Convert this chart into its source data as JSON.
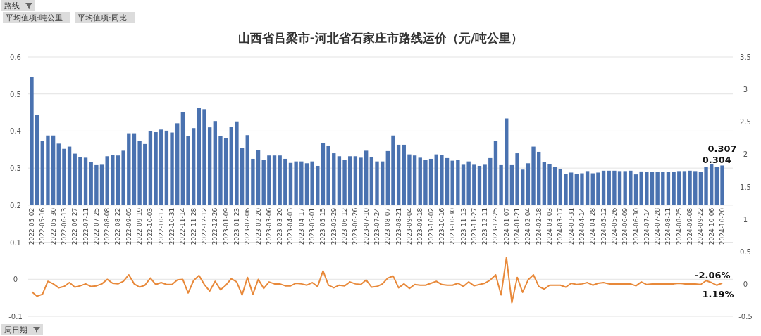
{
  "chart_data": {
    "type": "bar",
    "title": "山西省吕梁市-河北省石家庄市路线运价（元/吨公里）",
    "annotations": [
      "路线",
      "平均值项:吨公里",
      "平均值项:同比",
      "周日期"
    ],
    "categories": [
      "2022-05-02",
      null,
      "2022-05-16",
      null,
      "2022-05-30",
      null,
      "2022-06-13",
      null,
      "2022-06-27",
      null,
      "2022-07-11",
      null,
      "2022-07-25",
      null,
      "2022-08-08",
      null,
      "2022-08-22",
      null,
      "2022-09-05",
      null,
      "2022-09-19",
      null,
      "2022-10-03",
      null,
      "2022-10-17",
      null,
      "2022-10-31",
      null,
      "2022-11-14",
      null,
      "2022-11-28",
      null,
      "2022-12-12",
      null,
      "2022-12-26",
      null,
      "2023-01-09",
      null,
      "2023-01-23",
      null,
      "2023-02-06",
      null,
      "2023-02-20",
      null,
      "2023-03-06",
      null,
      "2023-03-20",
      null,
      "2023-04-03",
      null,
      "2023-04-17",
      null,
      "2023-05-01",
      null,
      "2023-05-15",
      null,
      "2023-05-29",
      null,
      "2023-06-12",
      null,
      "2023-06-26",
      null,
      "2023-07-10",
      null,
      "2023-07-24",
      null,
      "2023-08-07",
      null,
      "2023-08-21",
      null,
      "2023-09-04",
      null,
      "2023-09-18",
      null,
      "2023-10-02",
      null,
      "2023-10-16",
      null,
      "2023-10-30",
      null,
      "2023-11-13",
      null,
      "2023-11-27",
      null,
      "2023-12-11",
      null,
      "2023-12-25",
      null,
      "2024-01-07",
      null,
      "2024-01-21",
      null,
      "2024-02-04",
      null,
      "2024-02-18",
      null,
      "2024-03-03",
      null,
      "2024-03-17",
      null,
      "2024-03-31",
      null,
      "2024-04-14",
      null,
      "2024-04-28",
      null,
      "2024-05-12",
      null,
      "2024-05-26",
      null,
      "2024-06-09",
      null,
      "2024-06-30",
      null,
      "2024-07-14",
      null,
      "2024-07-28",
      null,
      "2024-08-11",
      null,
      "2024-08-25",
      null,
      "2024-09-08",
      null,
      "2024-09-22",
      null,
      "2024-10-06",
      null,
      "2024-10-20"
    ],
    "series": [
      {
        "color": "#4a72b0",
        "base": [
          0.2,
          0.2,
          0.2,
          0.2,
          0.2,
          0.2,
          0.2,
          0.2,
          0.2,
          0.2,
          0.2,
          0.2,
          0.2,
          0.2,
          0.2,
          0.2,
          0.2,
          0.2,
          0.2,
          0.2,
          0.2,
          0.2,
          0.2,
          0.2,
          0.2,
          0.2,
          0.2,
          0.2,
          0.2,
          0.2,
          0.2,
          0.2,
          0.2,
          0.2,
          0.2,
          0.2,
          0.2,
          0.2,
          0.2,
          0.2,
          0.2,
          0.2,
          0.2,
          0.2,
          0.2,
          0.2,
          0.2,
          0.2,
          0.2,
          0.2,
          0.2,
          0.2,
          0.2,
          0.2,
          0.2,
          0.2,
          0.2,
          0.2,
          0.2,
          0.2,
          0.2,
          0.2,
          0.2,
          0.2,
          0.2,
          0.2,
          0.2,
          0.2,
          0.2,
          0.2,
          0.2,
          0.2,
          0.2,
          0.2,
          0.2,
          0.2,
          0.2,
          0.2,
          0.2,
          0.2,
          0.2,
          0.2,
          0.2,
          0.2,
          0.2,
          0.2,
          0.2,
          0.2,
          0.2,
          0.2,
          0.2,
          0.2,
          0.2,
          0.2,
          0.2,
          0.2,
          0.2,
          0.2,
          0.2,
          0.2,
          0.2,
          0.2,
          0.2,
          0.2,
          0.2,
          0.2,
          0.2,
          0.2,
          0.2,
          0.2,
          0.2,
          0.2,
          0.2,
          0.2,
          0.2,
          0.2,
          0.2,
          0.2,
          0.2,
          0.2,
          0.2,
          0.2,
          0.2,
          0.2,
          0.2,
          0.2,
          0.2,
          0.2,
          0.2
        ],
        "values": [
          0.346,
          0.244,
          0.173,
          0.188,
          0.188,
          0.166,
          0.152,
          0.158,
          0.139,
          0.129,
          0.128,
          0.116,
          0.108,
          0.109,
          0.132,
          0.135,
          0.134,
          0.147,
          0.194,
          0.194,
          0.174,
          0.165,
          0.199,
          0.197,
          0.204,
          0.201,
          0.196,
          0.221,
          0.251,
          0.187,
          0.208,
          0.263,
          0.259,
          0.21,
          0.227,
          0.187,
          0.18,
          0.212,
          0.226,
          0.154,
          0.189,
          0.125,
          0.149,
          0.123,
          0.134,
          0.134,
          0.134,
          0.125,
          0.114,
          0.118,
          0.118,
          0.113,
          0.118,
          0.106,
          0.167,
          0.161,
          0.14,
          0.132,
          0.122,
          0.132,
          0.132,
          0.128,
          0.147,
          0.13,
          0.118,
          0.118,
          0.146,
          0.188,
          0.163,
          0.163,
          0.137,
          0.134,
          0.128,
          0.123,
          0.125,
          0.137,
          0.135,
          0.127,
          0.12,
          0.122,
          0.109,
          0.118,
          0.109,
          0.106,
          0.109,
          0.127,
          0.173,
          0.108,
          0.234,
          0.108,
          0.14,
          0.096,
          0.113,
          0.158,
          0.144,
          0.116,
          0.111,
          0.104,
          0.098,
          0.084,
          0.088,
          0.085,
          0.086,
          0.092,
          0.086,
          0.088,
          0.093,
          0.093,
          0.093,
          0.092,
          0.092,
          0.093,
          0.083,
          0.091,
          0.089,
          0.089,
          0.09,
          0.089,
          0.09,
          0.089,
          0.092,
          0.092,
          0.093,
          0.092,
          0.089,
          0.103,
          0.11,
          0.104,
          0.107
        ],
        "value_labels": [
          null,
          null,
          null,
          null,
          null,
          null,
          null,
          null,
          null,
          null,
          null,
          null,
          null,
          null,
          null,
          null,
          null,
          null,
          null,
          null,
          null,
          null,
          null,
          null,
          null,
          null,
          null,
          null,
          null,
          null,
          null,
          null,
          null,
          null,
          null,
          null,
          null,
          null,
          null,
          null,
          null,
          null,
          null,
          null,
          null,
          null,
          null,
          null,
          null,
          null,
          null,
          null,
          null,
          null,
          null,
          null,
          null,
          null,
          null,
          null,
          null,
          null,
          null,
          null,
          null,
          null,
          null,
          null,
          null,
          null,
          null,
          null,
          null,
          null,
          null,
          null,
          null,
          null,
          null,
          null,
          null,
          null,
          null,
          null,
          null,
          null,
          null,
          null,
          null,
          null,
          null,
          null,
          null,
          null,
          null,
          null,
          null,
          null,
          null,
          null,
          null,
          null,
          null,
          null,
          null,
          null,
          null,
          null,
          null,
          null,
          null,
          null,
          null,
          null,
          null,
          null,
          null,
          null,
          null,
          null,
          null,
          null,
          null,
          null,
          null,
          null,
          null,
          "0.304",
          "0.307"
        ]
      },
      {
        "type": "line",
        "axis": "y2",
        "color": "#e8893a",
        "values": [
          -0.12,
          -0.19,
          -0.16,
          0.04,
          0,
          -0.06,
          -0.04,
          0.02,
          -0.05,
          -0.03,
          0,
          -0.04,
          -0.03,
          0,
          0.07,
          0.01,
          0,
          0.04,
          0.14,
          0,
          -0.05,
          -0.02,
          0.09,
          -0.01,
          0.02,
          -0.01,
          -0.01,
          0.06,
          0.07,
          -0.14,
          0.05,
          0.13,
          -0.01,
          -0.11,
          0.04,
          -0.09,
          -0.02,
          0.08,
          0.03,
          -0.17,
          0.1,
          -0.16,
          0.07,
          -0.07,
          0.03,
          0,
          0,
          -0.03,
          -0.03,
          0.01,
          0,
          -0.02,
          0.02,
          -0.04,
          0.2,
          -0.02,
          -0.06,
          -0.02,
          -0.03,
          0.03,
          0,
          -0.01,
          0.06,
          -0.05,
          -0.04,
          0,
          0.09,
          0.12,
          -0.06,
          0,
          -0.07,
          -0.01,
          -0.02,
          -0.02,
          0.01,
          0.04,
          -0.01,
          -0.02,
          -0.02,
          0.01,
          -0.04,
          0.03,
          -0.03,
          -0.01,
          0.01,
          0.06,
          0.14,
          -0.17,
          0.41,
          -0.29,
          0.1,
          -0.13,
          0.06,
          0.14,
          -0.04,
          -0.08,
          -0.02,
          -0.02,
          -0.02,
          -0.05,
          0.01,
          -0.01,
          0,
          0.02,
          -0.02,
          0.01,
          0.02,
          0,
          0,
          0,
          0,
          0,
          -0.03,
          0.03,
          -0.01,
          0,
          0,
          0,
          0,
          0,
          0.01,
          0,
          0,
          0,
          -0.01,
          0.05,
          0.02,
          -0.0206,
          0.0119
        ],
        "value_labels": [
          null,
          null,
          null,
          null,
          null,
          null,
          null,
          null,
          null,
          null,
          null,
          null,
          null,
          null,
          null,
          null,
          null,
          null,
          null,
          null,
          null,
          null,
          null,
          null,
          null,
          null,
          null,
          null,
          null,
          null,
          null,
          null,
          null,
          null,
          null,
          null,
          null,
          null,
          null,
          null,
          null,
          null,
          null,
          null,
          null,
          null,
          null,
          null,
          null,
          null,
          null,
          null,
          null,
          null,
          null,
          null,
          null,
          null,
          null,
          null,
          null,
          null,
          null,
          null,
          null,
          null,
          null,
          null,
          null,
          null,
          null,
          null,
          null,
          null,
          null,
          null,
          null,
          null,
          null,
          null,
          null,
          null,
          null,
          null,
          null,
          null,
          null,
          null,
          null,
          null,
          null,
          null,
          null,
          null,
          null,
          null,
          null,
          null,
          null,
          null,
          null,
          null,
          null,
          null,
          null,
          null,
          null,
          null,
          null,
          null,
          null,
          null,
          null,
          null,
          null,
          null,
          null,
          null,
          null,
          null,
          null,
          null,
          null,
          null,
          null,
          null,
          null,
          "-2.06%",
          "1.19%"
        ]
      }
    ],
    "ylim": [
      -0.1,
      0.6
    ],
    "yticks": [
      -0.1,
      0,
      0.1,
      0.2,
      0.3,
      0.4,
      0.5,
      0.6
    ],
    "y2lim": [
      -0.5,
      3.5
    ],
    "y2ticks": [
      -0.5,
      0,
      0.5,
      1,
      1.5,
      2,
      2.5,
      3,
      3.5
    ],
    "grid": "y"
  }
}
